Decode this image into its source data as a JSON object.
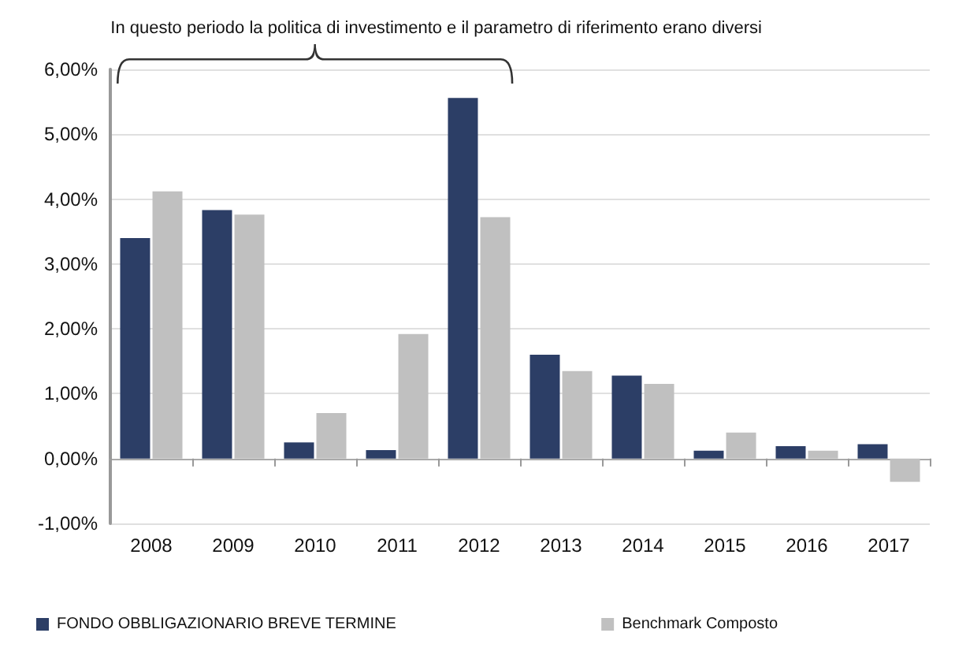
{
  "chart_data": {
    "type": "bar",
    "categories": [
      "2008",
      "2009",
      "2010",
      "2011",
      "2012",
      "2013",
      "2014",
      "2015",
      "2016",
      "2017"
    ],
    "series": [
      {
        "name": "FONDO OBBLIGAZIONARIO BREVE TERMINE",
        "color": "#2c3e66",
        "values": [
          3.4,
          3.83,
          0.25,
          0.13,
          5.56,
          1.6,
          1.28,
          0.12,
          0.19,
          0.22
        ]
      },
      {
        "name": "Benchmark Composto",
        "color": "#c0c0c0",
        "values": [
          4.12,
          3.76,
          0.7,
          1.92,
          3.72,
          1.35,
          1.15,
          0.4,
          0.12,
          -0.36
        ]
      }
    ],
    "ylim": [
      -1,
      6
    ],
    "yticks": [
      {
        "value": -1,
        "label": "-1,00%"
      },
      {
        "value": 0,
        "label": "0,00%"
      },
      {
        "value": 1,
        "label": "1,00%"
      },
      {
        "value": 2,
        "label": "2,00%"
      },
      {
        "value": 3,
        "label": "3,00%"
      },
      {
        "value": 4,
        "label": "4,00%"
      },
      {
        "value": 5,
        "label": "5,00%"
      },
      {
        "value": 6,
        "label": "6,00%"
      }
    ],
    "grid": "y",
    "legend": "bottom",
    "annotations": [
      "In questo periodo la politica di investimento e il parametro di riferimento erano diversi"
    ]
  }
}
